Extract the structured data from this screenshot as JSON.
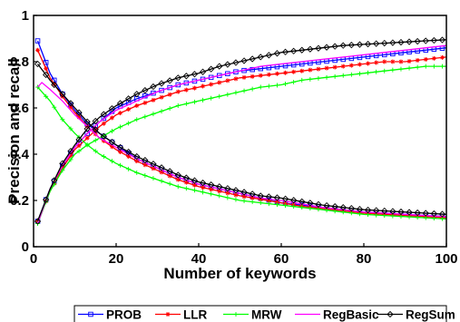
{
  "chart_data": {
    "type": "line",
    "title": "",
    "xlabel": "Number of keywords",
    "ylabel": "Precision and recall",
    "xlim": [
      0,
      100
    ],
    "ylim": [
      0,
      1
    ],
    "xticks": [
      0,
      20,
      40,
      60,
      80,
      100
    ],
    "yticks": [
      0,
      0.2,
      0.4,
      0.6,
      0.8,
      1
    ],
    "xtick_labels": [
      "0",
      "20",
      "40",
      "60",
      "80",
      "100"
    ],
    "ytick_labels": [
      "0",
      "0.2",
      "0.4",
      "0.6",
      "0.8",
      "1"
    ],
    "grid": false,
    "legend_position": "bottom",
    "series": [
      {
        "name": "PROB",
        "color": "#0000ff",
        "marker": "square",
        "precision": [
          [
            1,
            0.89
          ],
          [
            4,
            0.75
          ],
          [
            7,
            0.66
          ],
          [
            10,
            0.59
          ],
          [
            13,
            0.53
          ],
          [
            16,
            0.49
          ],
          [
            20,
            0.44
          ],
          [
            25,
            0.38
          ],
          [
            30,
            0.34
          ],
          [
            35,
            0.3
          ],
          [
            40,
            0.27
          ],
          [
            45,
            0.25
          ],
          [
            50,
            0.23
          ],
          [
            55,
            0.21
          ],
          [
            60,
            0.19
          ],
          [
            65,
            0.18
          ],
          [
            70,
            0.17
          ],
          [
            75,
            0.16
          ],
          [
            80,
            0.15
          ],
          [
            85,
            0.145
          ],
          [
            90,
            0.14
          ],
          [
            95,
            0.135
          ],
          [
            100,
            0.13
          ]
        ],
        "recall": [
          [
            1,
            0.11
          ],
          [
            4,
            0.25
          ],
          [
            7,
            0.35
          ],
          [
            10,
            0.43
          ],
          [
            13,
            0.49
          ],
          [
            16,
            0.54
          ],
          [
            20,
            0.6
          ],
          [
            25,
            0.64
          ],
          [
            30,
            0.67
          ],
          [
            35,
            0.7
          ],
          [
            40,
            0.72
          ],
          [
            45,
            0.74
          ],
          [
            50,
            0.76
          ],
          [
            55,
            0.77
          ],
          [
            60,
            0.78
          ],
          [
            65,
            0.79
          ],
          [
            70,
            0.8
          ],
          [
            75,
            0.81
          ],
          [
            80,
            0.82
          ],
          [
            85,
            0.83
          ],
          [
            90,
            0.84
          ],
          [
            95,
            0.85
          ],
          [
            100,
            0.86
          ]
        ]
      },
      {
        "name": "LLR",
        "color": "#ff0000",
        "marker": "star",
        "precision": [
          [
            1,
            0.85
          ],
          [
            4,
            0.73
          ],
          [
            7,
            0.65
          ],
          [
            10,
            0.58
          ],
          [
            13,
            0.52
          ],
          [
            16,
            0.47
          ],
          [
            20,
            0.42
          ],
          [
            25,
            0.37
          ],
          [
            30,
            0.33
          ],
          [
            35,
            0.29
          ],
          [
            40,
            0.26
          ],
          [
            45,
            0.24
          ],
          [
            50,
            0.22
          ],
          [
            55,
            0.205
          ],
          [
            60,
            0.19
          ],
          [
            65,
            0.175
          ],
          [
            70,
            0.165
          ],
          [
            75,
            0.155
          ],
          [
            80,
            0.145
          ],
          [
            85,
            0.14
          ],
          [
            90,
            0.135
          ],
          [
            95,
            0.13
          ],
          [
            100,
            0.125
          ]
        ],
        "recall": [
          [
            1,
            0.11
          ],
          [
            4,
            0.24
          ],
          [
            7,
            0.34
          ],
          [
            10,
            0.42
          ],
          [
            13,
            0.47
          ],
          [
            16,
            0.52
          ],
          [
            20,
            0.57
          ],
          [
            25,
            0.61
          ],
          [
            30,
            0.64
          ],
          [
            35,
            0.67
          ],
          [
            40,
            0.69
          ],
          [
            45,
            0.71
          ],
          [
            50,
            0.73
          ],
          [
            55,
            0.74
          ],
          [
            60,
            0.75
          ],
          [
            65,
            0.76
          ],
          [
            70,
            0.77
          ],
          [
            75,
            0.78
          ],
          [
            80,
            0.79
          ],
          [
            85,
            0.8
          ],
          [
            90,
            0.8
          ],
          [
            95,
            0.81
          ],
          [
            100,
            0.82
          ]
        ]
      },
      {
        "name": "MRW",
        "color": "#00ff00",
        "marker": "plus",
        "precision": [
          [
            1,
            0.69
          ],
          [
            4,
            0.63
          ],
          [
            7,
            0.55
          ],
          [
            10,
            0.49
          ],
          [
            13,
            0.44
          ],
          [
            16,
            0.4
          ],
          [
            20,
            0.36
          ],
          [
            25,
            0.32
          ],
          [
            30,
            0.29
          ],
          [
            35,
            0.26
          ],
          [
            40,
            0.24
          ],
          [
            45,
            0.22
          ],
          [
            50,
            0.2
          ],
          [
            55,
            0.19
          ],
          [
            60,
            0.18
          ],
          [
            65,
            0.17
          ],
          [
            70,
            0.16
          ],
          [
            75,
            0.15
          ],
          [
            80,
            0.14
          ],
          [
            85,
            0.135
          ],
          [
            90,
            0.13
          ],
          [
            95,
            0.125
          ],
          [
            100,
            0.12
          ]
        ],
        "recall": [
          [
            1,
            0.1
          ],
          [
            4,
            0.24
          ],
          [
            7,
            0.33
          ],
          [
            10,
            0.4
          ],
          [
            13,
            0.44
          ],
          [
            16,
            0.47
          ],
          [
            20,
            0.51
          ],
          [
            25,
            0.55
          ],
          [
            30,
            0.58
          ],
          [
            35,
            0.61
          ],
          [
            40,
            0.63
          ],
          [
            45,
            0.65
          ],
          [
            50,
            0.67
          ],
          [
            55,
            0.69
          ],
          [
            60,
            0.7
          ],
          [
            65,
            0.72
          ],
          [
            70,
            0.73
          ],
          [
            75,
            0.74
          ],
          [
            80,
            0.75
          ],
          [
            85,
            0.76
          ],
          [
            90,
            0.77
          ],
          [
            95,
            0.78
          ],
          [
            100,
            0.78
          ]
        ]
      },
      {
        "name": "RegBasic",
        "color": "#ff00ff",
        "marker": "none",
        "precision": [
          [
            1,
            0.69
          ],
          [
            2,
            0.71
          ],
          [
            4,
            0.68
          ],
          [
            7,
            0.63
          ],
          [
            10,
            0.57
          ],
          [
            13,
            0.52
          ],
          [
            16,
            0.47
          ],
          [
            20,
            0.43
          ],
          [
            25,
            0.38
          ],
          [
            30,
            0.34
          ],
          [
            35,
            0.3
          ],
          [
            40,
            0.27
          ],
          [
            45,
            0.25
          ],
          [
            50,
            0.23
          ],
          [
            55,
            0.21
          ],
          [
            60,
            0.2
          ],
          [
            65,
            0.185
          ],
          [
            70,
            0.17
          ],
          [
            75,
            0.16
          ],
          [
            80,
            0.15
          ],
          [
            85,
            0.145
          ],
          [
            90,
            0.14
          ],
          [
            95,
            0.135
          ],
          [
            100,
            0.13
          ]
        ],
        "recall": [
          [
            1,
            0.1
          ],
          [
            4,
            0.25
          ],
          [
            7,
            0.35
          ],
          [
            10,
            0.43
          ],
          [
            13,
            0.49
          ],
          [
            16,
            0.54
          ],
          [
            20,
            0.59
          ],
          [
            25,
            0.63
          ],
          [
            30,
            0.67
          ],
          [
            35,
            0.7
          ],
          [
            40,
            0.72
          ],
          [
            45,
            0.74
          ],
          [
            50,
            0.76
          ],
          [
            55,
            0.78
          ],
          [
            60,
            0.79
          ],
          [
            65,
            0.8
          ],
          [
            70,
            0.81
          ],
          [
            75,
            0.82
          ],
          [
            80,
            0.83
          ],
          [
            85,
            0.84
          ],
          [
            90,
            0.85
          ],
          [
            95,
            0.86
          ],
          [
            100,
            0.87
          ]
        ]
      },
      {
        "name": "RegSum",
        "color": "#000000",
        "marker": "diamond",
        "precision": [
          [
            1,
            0.79
          ],
          [
            4,
            0.72
          ],
          [
            7,
            0.66
          ],
          [
            10,
            0.6
          ],
          [
            13,
            0.54
          ],
          [
            16,
            0.49
          ],
          [
            20,
            0.44
          ],
          [
            25,
            0.39
          ],
          [
            30,
            0.35
          ],
          [
            35,
            0.31
          ],
          [
            40,
            0.28
          ],
          [
            45,
            0.26
          ],
          [
            50,
            0.24
          ],
          [
            55,
            0.22
          ],
          [
            60,
            0.21
          ],
          [
            65,
            0.195
          ],
          [
            70,
            0.18
          ],
          [
            75,
            0.17
          ],
          [
            80,
            0.16
          ],
          [
            85,
            0.155
          ],
          [
            90,
            0.15
          ],
          [
            95,
            0.145
          ],
          [
            100,
            0.14
          ]
        ],
        "recall": [
          [
            1,
            0.11
          ],
          [
            4,
            0.25
          ],
          [
            7,
            0.36
          ],
          [
            10,
            0.44
          ],
          [
            13,
            0.51
          ],
          [
            16,
            0.56
          ],
          [
            20,
            0.61
          ],
          [
            25,
            0.66
          ],
          [
            30,
            0.7
          ],
          [
            35,
            0.73
          ],
          [
            40,
            0.75
          ],
          [
            45,
            0.78
          ],
          [
            50,
            0.8
          ],
          [
            55,
            0.82
          ],
          [
            60,
            0.84
          ],
          [
            65,
            0.85
          ],
          [
            70,
            0.86
          ],
          [
            75,
            0.87
          ],
          [
            80,
            0.875
          ],
          [
            85,
            0.88
          ],
          [
            90,
            0.885
          ],
          [
            95,
            0.89
          ],
          [
            100,
            0.895
          ]
        ]
      }
    ]
  }
}
